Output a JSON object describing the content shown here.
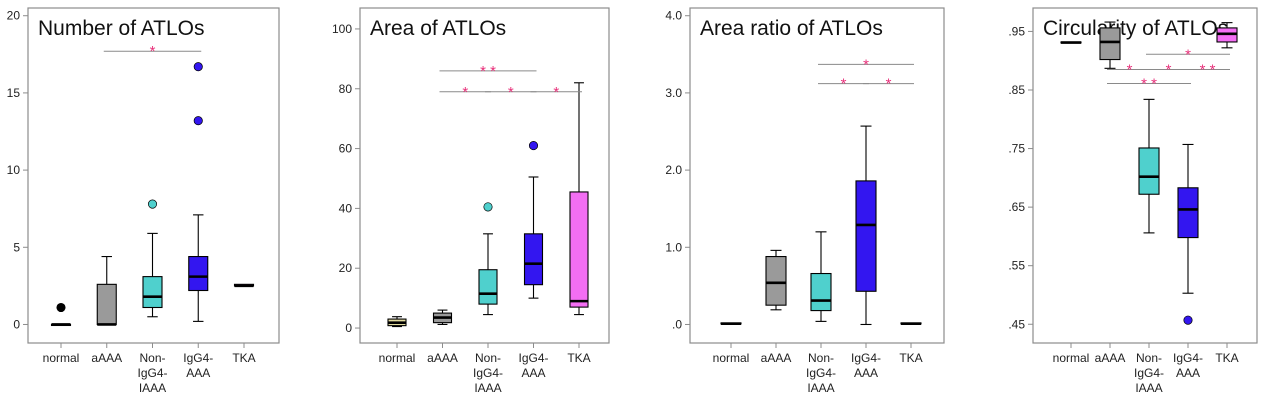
{
  "colors": {
    "normal": "#e3dca0",
    "aAAA": "#9a9a9a",
    "nonIgG4": "#4fd0cd",
    "IgG4": "#3316f0",
    "TKA": "#f36ef3",
    "significance": "#e8307a",
    "frame": "#8c8c8c",
    "line": "#8a8a8a"
  },
  "chart_data": [
    {
      "type": "box",
      "title": "Number of ATLOs",
      "categories": [
        [
          "normal"
        ],
        [
          "aAAA"
        ],
        [
          "Non-",
          "IgG4-",
          "IAAA"
        ],
        [
          "IgG4-",
          "AAA"
        ],
        [
          "TKA"
        ]
      ],
      "ylim": [
        -1.2,
        20.5
      ],
      "yticks": [
        0,
        5,
        10,
        15,
        20
      ],
      "ytick_labels": [
        "0",
        "5",
        "10",
        "15",
        "20"
      ],
      "boxes": [
        {
          "min": 0,
          "q1": 0,
          "median": 0,
          "q3": 0,
          "max": 0,
          "outliers": [
            1.1
          ],
          "outlier_color": "#000000"
        },
        {
          "min": 0,
          "q1": 0,
          "median": 0,
          "q3": 2.6,
          "max": 4.4,
          "outliers": []
        },
        {
          "min": 0.5,
          "q1": 1.1,
          "median": 1.8,
          "q3": 3.1,
          "max": 5.9,
          "outliers": [
            7.8
          ]
        },
        {
          "min": 0.2,
          "q1": 2.2,
          "median": 3.1,
          "q3": 4.4,
          "max": 7.1,
          "outliers": [
            13.2,
            16.7
          ]
        },
        {
          "min": 2.5,
          "q1": 2.5,
          "median": 2.5,
          "q3": 2.6,
          "max": 2.6,
          "outliers": []
        }
      ],
      "significance": [
        {
          "from": 2,
          "to": 4,
          "y": 17.7,
          "label": "*"
        }
      ]
    },
    {
      "type": "box",
      "title": "Area of ATLOs",
      "categories": [
        [
          "normal"
        ],
        [
          "aAAA"
        ],
        [
          "Non-",
          "IgG4-",
          "IAAA"
        ],
        [
          "IgG4-",
          "AAA"
        ],
        [
          "TKA"
        ]
      ],
      "ylim": [
        -5,
        107
      ],
      "yticks": [
        0,
        20,
        40,
        60,
        80,
        100
      ],
      "ytick_labels": [
        "0",
        "20",
        "40",
        "60",
        "80",
        "100"
      ],
      "boxes": [
        {
          "min": 0.5,
          "q1": 0.8,
          "median": 1.8,
          "q3": 3,
          "max": 3.8,
          "outliers": []
        },
        {
          "min": 1.2,
          "q1": 1.8,
          "median": 3.5,
          "q3": 5,
          "max": 6,
          "outliers": []
        },
        {
          "min": 4.5,
          "q1": 8,
          "median": 11.5,
          "q3": 19.5,
          "max": 31.5,
          "outliers": [
            40.5
          ]
        },
        {
          "min": 10,
          "q1": 14.5,
          "median": 21.5,
          "q3": 31.5,
          "max": 50.5,
          "outliers": [
            61
          ]
        },
        {
          "min": 4.5,
          "q1": 7,
          "median": 9,
          "q3": 45.5,
          "max": 82,
          "outliers": []
        }
      ],
      "significance": [
        {
          "from": 2,
          "to": 4,
          "y": 86,
          "label": "* *"
        },
        {
          "from": 2,
          "to": 3,
          "y": 79,
          "label": "*"
        },
        {
          "from": 3,
          "to": 4,
          "y": 79,
          "label": "*"
        },
        {
          "from": 4,
          "to": 5,
          "y": 79,
          "label": "*"
        }
      ]
    },
    {
      "type": "box",
      "title": "Area ratio of ATLOs",
      "categories": [
        [
          "normal"
        ],
        [
          "aAAA"
        ],
        [
          "Non-",
          "IgG4-",
          "IAAA"
        ],
        [
          "IgG4-",
          "AAA"
        ],
        [
          "TKA"
        ]
      ],
      "ylim": [
        -0.24,
        4.1
      ],
      "yticks": [
        0,
        1,
        2,
        3,
        4
      ],
      "ytick_labels": [
        ".0",
        "1.0",
        "2.0",
        "3.0",
        "4.0"
      ],
      "boxes": [
        {
          "min": 0.01,
          "q1": 0.01,
          "median": 0.01,
          "q3": 0.02,
          "max": 0.02,
          "outliers": []
        },
        {
          "min": 0.19,
          "q1": 0.25,
          "median": 0.54,
          "q3": 0.88,
          "max": 0.96,
          "outliers": []
        },
        {
          "min": 0.04,
          "q1": 0.18,
          "median": 0.31,
          "q3": 0.66,
          "max": 1.2,
          "outliers": []
        },
        {
          "min": 0,
          "q1": 0.43,
          "median": 1.29,
          "q3": 1.86,
          "max": 2.57,
          "outliers": []
        },
        {
          "min": 0.01,
          "q1": 0.01,
          "median": 0.01,
          "q3": 0.02,
          "max": 0.02,
          "outliers": []
        }
      ],
      "significance": [
        {
          "from": 3,
          "to": 5,
          "y": 3.37,
          "label": "*"
        },
        {
          "from": 3,
          "to": 4,
          "y": 3.12,
          "label": "*"
        },
        {
          "from": 4,
          "to": 5,
          "y": 3.12,
          "label": "*"
        }
      ]
    },
    {
      "type": "box",
      "title": "Circularity of ATLOs",
      "categories": [
        [
          "normal"
        ],
        [
          "aAAA"
        ],
        [
          "Non-",
          "IgG4-",
          "IAAA"
        ],
        [
          "IgG4-",
          "AAA"
        ],
        [
          "TKA"
        ]
      ],
      "ylim": [
        0.418,
        0.99
      ],
      "yticks": [
        0.45,
        0.55,
        0.65,
        0.75,
        0.85,
        0.95
      ],
      "ytick_labels": [
        ".45",
        ".55",
        ".65",
        ".75",
        ".85",
        ".95"
      ],
      "boxes": [
        {
          "min": 0.931,
          "q1": 0.931,
          "median": 0.931,
          "q3": 0.932,
          "max": 0.932,
          "outliers": []
        },
        {
          "min": 0.887,
          "q1": 0.902,
          "median": 0.932,
          "q3": 0.956,
          "max": 0.966,
          "outliers": []
        },
        {
          "min": 0.606,
          "q1": 0.672,
          "median": 0.702,
          "q3": 0.751,
          "max": 0.834,
          "outliers": []
        },
        {
          "min": 0.503,
          "q1": 0.598,
          "median": 0.646,
          "q3": 0.683,
          "max": 0.757,
          "outliers": [
            0.457
          ]
        },
        {
          "min": 0.922,
          "q1": 0.932,
          "median": 0.946,
          "q3": 0.956,
          "max": 0.965,
          "outliers": []
        }
      ],
      "significance": [
        {
          "from": 3,
          "to": 5,
          "y": 0.911,
          "label": "*"
        },
        {
          "from": 2,
          "to": 3,
          "y": 0.885,
          "label": "*"
        },
        {
          "from": 3,
          "to": 4,
          "y": 0.885,
          "label": "*"
        },
        {
          "from": 4,
          "to": 5,
          "y": 0.885,
          "label": "* *"
        },
        {
          "from": 2,
          "to": 4,
          "y": 0.861,
          "label": "* *"
        }
      ]
    }
  ]
}
